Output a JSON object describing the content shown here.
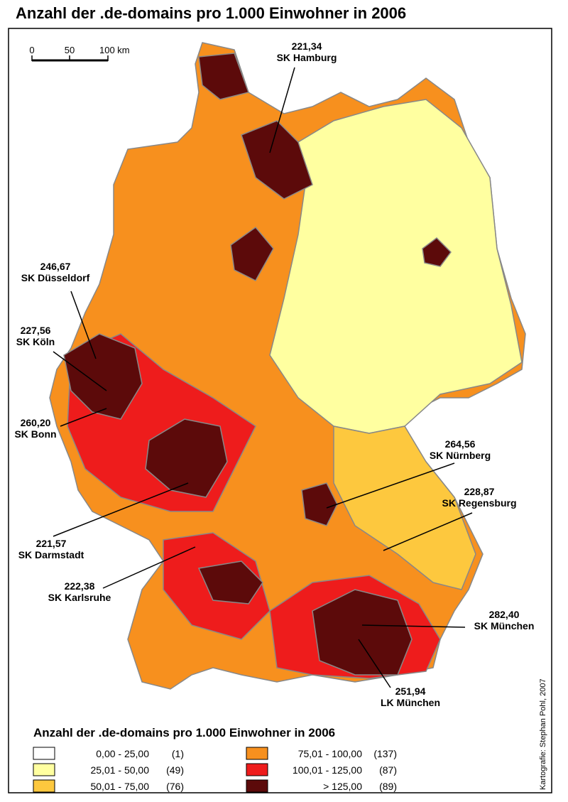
{
  "title": "Anzahl der .de-domains pro 1.000 Einwohner in 2006",
  "scale": {
    "ticks": [
      "0",
      "50",
      "100 km"
    ]
  },
  "callouts": [
    {
      "value": "221,34",
      "name": "SK Hamburg"
    },
    {
      "value": "246,67",
      "name": "SK Düsseldorf"
    },
    {
      "value": "227,56",
      "name": "SK Köln"
    },
    {
      "value": "260,20",
      "name": "SK Bonn"
    },
    {
      "value": "221,57",
      "name": "SK Darmstadt"
    },
    {
      "value": "222,38",
      "name": "SK Karlsruhe"
    },
    {
      "value": "264,56",
      "name": "SK Nürnberg"
    },
    {
      "value": "228,87",
      "name": "SK Regensburg"
    },
    {
      "value": "282,40",
      "name": "SK München"
    },
    {
      "value": "251,94",
      "name": "LK München"
    }
  ],
  "legend": {
    "title": "Anzahl der .de-domains pro 1.000 Einwohner in 2006",
    "entries": [
      {
        "range": "0,00  -  25,00",
        "count": "(1)",
        "color": "#ffffff"
      },
      {
        "range": "25,01  -  50,00",
        "count": "(49)",
        "color": "#ffffa0"
      },
      {
        "range": "50,01  -  75,00",
        "count": "(76)",
        "color": "#fdc83e"
      },
      {
        "range": "75,01  -  100,00",
        "count": "(137)",
        "color": "#f7901e"
      },
      {
        "range": "100,01  -  125,00",
        "count": "(87)",
        "color": "#ee1c1c"
      },
      {
        "range": "> 125,00",
        "count": "(89)",
        "color": "#5c0a0a"
      }
    ]
  },
  "credit": "Kartografie: Stephan Pohl, 2007"
}
